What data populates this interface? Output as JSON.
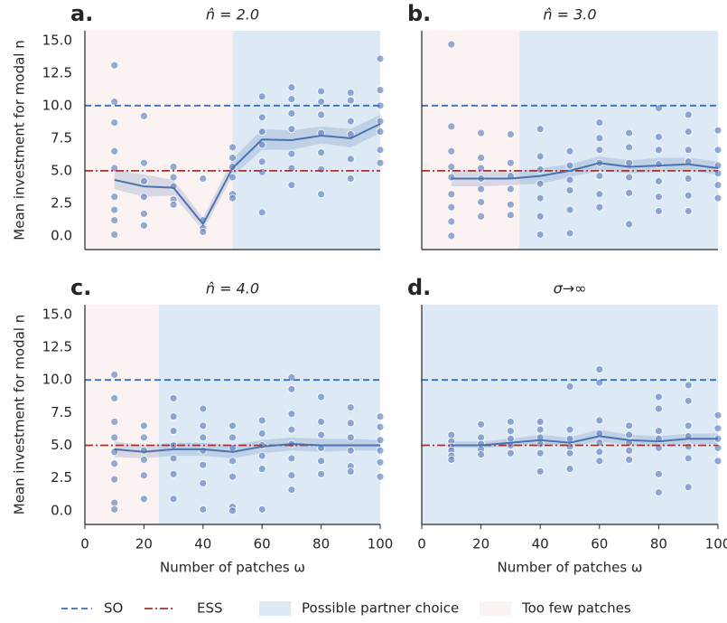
{
  "chart_data": [
    {
      "type": "line",
      "panel_label": "a.",
      "title": "n̂ = 2.0",
      "y_label": "Mean investment for modal n",
      "x": [
        10,
        20,
        30,
        40,
        50,
        60,
        70,
        80,
        90,
        100
      ],
      "xlim": [
        0,
        100
      ],
      "ylim": [
        -1.05,
        15.75
      ],
      "yticks": [
        {
          "value": 0,
          "label": "0.0"
        },
        2.5,
        {
          "value": 5,
          "label": "5.0"
        },
        7.5,
        {
          "value": 10,
          "label": "10.0"
        },
        12.5,
        {
          "value": 15,
          "label": "15.0"
        }
      ],
      "too_few_until": 50,
      "series": [
        {
          "values": [
            4.3,
            3.8,
            3.7,
            0.9,
            5.2,
            7.4,
            7.35,
            7.7,
            7.5,
            8.6
          ],
          "color": "#4c72b0"
        }
      ],
      "band": {
        "lower": [
          3.6,
          3.0,
          3.1,
          0.4,
          4.6,
          6.6,
          6.6,
          7.1,
          6.8,
          7.9
        ],
        "upper": [
          5.1,
          4.7,
          4.3,
          1.4,
          5.9,
          8.2,
          8.1,
          8.4,
          8.2,
          9.3
        ]
      },
      "points": [
        {
          "x": 10,
          "y": [
            13.1,
            10.3,
            8.7,
            6.5,
            5.2,
            3.0,
            2.0,
            1.2,
            0.1
          ]
        },
        {
          "x": 20,
          "y": [
            9.2,
            5.6,
            4.2,
            3.0,
            1.7,
            0.8
          ]
        },
        {
          "x": 30,
          "y": [
            5.3,
            4.5,
            3.8,
            2.8,
            2.4
          ]
        },
        {
          "x": 40,
          "y": [
            4.4,
            1.2,
            0.6,
            0.3
          ]
        },
        {
          "x": 50,
          "y": [
            6.8,
            6.0,
            5.3,
            4.5,
            3.2,
            2.9
          ]
        },
        {
          "x": 60,
          "y": [
            10.7,
            9.1,
            8.0,
            7.0,
            5.7,
            4.9,
            1.8
          ]
        },
        {
          "x": 70,
          "y": [
            11.4,
            10.5,
            9.4,
            8.2,
            6.3,
            5.2,
            3.9
          ]
        },
        {
          "x": 80,
          "y": [
            11.1,
            10.3,
            9.3,
            7.9,
            6.4,
            5.1,
            3.2
          ]
        },
        {
          "x": 90,
          "y": [
            11.0,
            10.4,
            8.8,
            7.8,
            5.9,
            4.4
          ]
        },
        {
          "x": 100,
          "y": [
            13.6,
            11.2,
            10.0,
            8.8,
            8.0,
            6.6,
            5.6
          ]
        }
      ]
    },
    {
      "type": "line",
      "panel_label": "b.",
      "title": "n̂ = 3.0",
      "x": [
        10,
        20,
        30,
        40,
        50,
        60,
        70,
        80,
        90,
        100
      ],
      "xlim": [
        0,
        100
      ],
      "ylim": [
        -1.05,
        15.75
      ],
      "too_few_until": 33,
      "series": [
        {
          "values": [
            4.4,
            4.4,
            4.4,
            4.6,
            5.0,
            5.6,
            5.3,
            5.4,
            5.5,
            5.2
          ],
          "color": "#4c72b0"
        }
      ],
      "band": {
        "lower": [
          3.8,
          3.8,
          3.9,
          4.0,
          4.5,
          5.0,
          4.8,
          4.9,
          5.0,
          4.7
        ],
        "upper": [
          5.0,
          5.0,
          4.9,
          5.2,
          5.5,
          6.1,
          5.8,
          6.0,
          6.0,
          5.7
        ]
      },
      "points": [
        {
          "x": 10,
          "y": [
            14.7,
            8.4,
            6.5,
            5.3,
            4.5,
            3.2,
            2.2,
            1.1,
            0.0
          ]
        },
        {
          "x": 20,
          "y": [
            7.9,
            6.0,
            5.2,
            4.4,
            3.6,
            2.6,
            1.5
          ]
        },
        {
          "x": 30,
          "y": [
            7.8,
            5.6,
            4.6,
            3.6,
            2.4,
            1.6
          ]
        },
        {
          "x": 40,
          "y": [
            8.2,
            6.1,
            5.1,
            4.0,
            2.9,
            1.5,
            0.1
          ]
        },
        {
          "x": 50,
          "y": [
            6.5,
            5.4,
            4.3,
            3.5,
            2.0,
            0.2
          ]
        },
        {
          "x": 60,
          "y": [
            8.7,
            7.5,
            6.6,
            5.6,
            4.6,
            3.2,
            2.2
          ]
        },
        {
          "x": 70,
          "y": [
            7.9,
            6.8,
            5.6,
            4.5,
            3.3,
            0.9
          ]
        },
        {
          "x": 80,
          "y": [
            9.8,
            7.6,
            6.6,
            5.5,
            4.2,
            3.0,
            1.9
          ]
        },
        {
          "x": 90,
          "y": [
            9.3,
            8.0,
            6.6,
            5.7,
            4.4,
            3.1,
            1.9
          ]
        },
        {
          "x": 100,
          "y": [
            8.1,
            6.6,
            5.4,
            4.8,
            3.9,
            2.9
          ]
        }
      ]
    },
    {
      "type": "line",
      "panel_label": "c.",
      "title": "n̂ = 4.0",
      "y_label": "Mean investment for modal n",
      "x_label": "Number of patches ω",
      "x": [
        10,
        20,
        30,
        40,
        50,
        60,
        70,
        80,
        90,
        100
      ],
      "xlim": [
        0,
        100
      ],
      "ylim": [
        -1.05,
        15.75
      ],
      "xticks": [
        0,
        20,
        40,
        60,
        80,
        100
      ],
      "yticks": [
        {
          "value": 0,
          "label": "0.0"
        },
        2.5,
        {
          "value": 5,
          "label": "5.0"
        },
        7.5,
        {
          "value": 10,
          "label": "10.0"
        },
        12.5,
        {
          "value": 15,
          "label": "15.0"
        }
      ],
      "too_few_until": 25,
      "series": [
        {
          "values": [
            4.7,
            4.5,
            4.7,
            4.7,
            4.5,
            4.9,
            5.1,
            5.0,
            5.0,
            5.0
          ],
          "color": "#4c72b0"
        }
      ],
      "band": {
        "lower": [
          4.1,
          4.0,
          4.2,
          4.2,
          4.0,
          4.4,
          4.6,
          4.5,
          4.6,
          4.6
        ],
        "upper": [
          5.3,
          5.0,
          5.2,
          5.2,
          5.0,
          5.4,
          5.6,
          5.5,
          5.5,
          5.4
        ]
      },
      "points": [
        {
          "x": 10,
          "y": [
            10.4,
            8.6,
            6.8,
            5.6,
            4.5,
            3.6,
            2.4,
            0.6,
            0.1
          ]
        },
        {
          "x": 20,
          "y": [
            6.5,
            5.6,
            4.6,
            3.9,
            2.7,
            0.9
          ]
        },
        {
          "x": 30,
          "y": [
            8.6,
            7.2,
            6.1,
            5.0,
            4.0,
            2.8,
            0.9
          ]
        },
        {
          "x": 40,
          "y": [
            7.8,
            6.5,
            5.6,
            4.6,
            3.5,
            2.1,
            0.1
          ]
        },
        {
          "x": 50,
          "y": [
            6.5,
            5.6,
            4.8,
            3.8,
            2.6,
            0.3,
            0.0
          ]
        },
        {
          "x": 60,
          "y": [
            6.9,
            5.9,
            5.0,
            4.2,
            3.2,
            0.1
          ]
        },
        {
          "x": 70,
          "y": [
            10.2,
            9.3,
            7.4,
            6.2,
            5.1,
            4.0,
            2.7,
            1.6
          ]
        },
        {
          "x": 80,
          "y": [
            8.7,
            6.8,
            5.8,
            4.8,
            3.8,
            2.8
          ]
        },
        {
          "x": 90,
          "y": [
            7.9,
            6.7,
            5.6,
            4.6,
            3.4,
            3.0
          ]
        },
        {
          "x": 100,
          "y": [
            7.2,
            6.4,
            5.4,
            4.6,
            3.7,
            2.6
          ]
        }
      ]
    },
    {
      "type": "line",
      "panel_label": "d.",
      "title": "σ→∞",
      "x_label": "Number of patches ω",
      "x": [
        10,
        20,
        30,
        40,
        50,
        60,
        70,
        80,
        90,
        100
      ],
      "xlim": [
        0,
        100
      ],
      "ylim": [
        -1.05,
        15.75
      ],
      "xticks": [
        0,
        20,
        40,
        60,
        80,
        100
      ],
      "series": [
        {
          "values": [
            5.0,
            5.0,
            5.2,
            5.4,
            5.2,
            5.7,
            5.4,
            5.3,
            5.5,
            5.5
          ],
          "color": "#4c72b0"
        }
      ],
      "band": {
        "lower": [
          4.8,
          4.8,
          4.9,
          5.1,
          4.9,
          5.3,
          5.0,
          4.9,
          5.1,
          5.1
        ],
        "upper": [
          5.3,
          5.3,
          5.5,
          5.8,
          5.6,
          6.2,
          5.8,
          5.7,
          5.9,
          5.9
        ]
      },
      "points": [
        {
          "x": 10,
          "y": [
            5.8,
            5.3,
            4.9,
            4.6,
            4.2,
            3.9
          ]
        },
        {
          "x": 20,
          "y": [
            6.6,
            5.6,
            5.1,
            4.7,
            4.3
          ]
        },
        {
          "x": 30,
          "y": [
            6.8,
            6.1,
            5.5,
            5.0,
            4.4
          ]
        },
        {
          "x": 40,
          "y": [
            6.8,
            6.2,
            5.6,
            5.1,
            4.4,
            3.0
          ]
        },
        {
          "x": 50,
          "y": [
            9.5,
            6.2,
            5.5,
            4.9,
            4.4,
            3.2
          ]
        },
        {
          "x": 60,
          "y": [
            10.8,
            9.8,
            6.9,
            5.9,
            5.2,
            4.5,
            3.8
          ]
        },
        {
          "x": 70,
          "y": [
            6.5,
            5.8,
            5.2,
            4.6,
            3.9
          ]
        },
        {
          "x": 80,
          "y": [
            8.7,
            7.8,
            6.1,
            5.5,
            4.8,
            2.8,
            1.4
          ]
        },
        {
          "x": 90,
          "y": [
            9.6,
            8.4,
            6.5,
            5.7,
            4.9,
            4.0,
            1.8
          ]
        },
        {
          "x": 100,
          "y": [
            7.3,
            6.3,
            5.5,
            4.8,
            3.8
          ]
        }
      ]
    }
  ],
  "reference_lines": [
    {
      "label": "SO",
      "value": 10,
      "color": "#3a6fb5",
      "dash": "7 4"
    },
    {
      "label": "ESS",
      "value": 5,
      "color": "#a8322d",
      "dash": "9 3 2 3"
    }
  ],
  "regions": {
    "partner_choice": {
      "label": "Possible partner choice",
      "color": "#dde9f5"
    },
    "too_few": {
      "label": "Too few patches",
      "color": "#fbf2f2"
    }
  }
}
